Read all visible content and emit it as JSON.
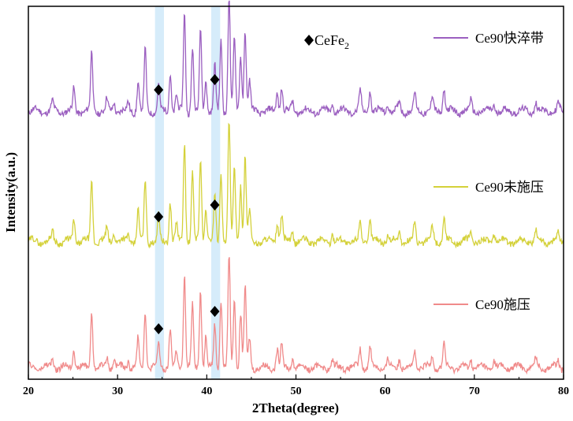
{
  "chart_data": {
    "type": "line",
    "xlabel": "2Theta(degree)",
    "ylabel": "Intensity(a.u.)",
    "xlim": [
      20,
      80
    ],
    "x_ticks": [
      20,
      30,
      40,
      50,
      60,
      70,
      80
    ],
    "y_ticks_shown": false,
    "grid": false,
    "highlight_bands": [
      {
        "from": 34.2,
        "to": 35.2,
        "color": "#d6ecfa"
      },
      {
        "from": 40.5,
        "to": 41.5,
        "color": "#d6ecfa"
      }
    ],
    "phase_marker": {
      "symbol": "◆",
      "phase": "CeFe",
      "subscript": "2",
      "positions": [
        34.6,
        40.9
      ]
    },
    "peaks": [
      {
        "x": 22.7,
        "h": 0.09
      },
      {
        "x": 25.1,
        "h": 0.22
      },
      {
        "x": 27.1,
        "h": 0.6
      },
      {
        "x": 28.8,
        "h": 0.12
      },
      {
        "x": 29.6,
        "h": 0.1
      },
      {
        "x": 31.2,
        "h": 0.08
      },
      {
        "x": 32.3,
        "h": 0.3
      },
      {
        "x": 33.1,
        "h": 0.62
      },
      {
        "x": 34.6,
        "h": 0.26
      },
      {
        "x": 35.9,
        "h": 0.4
      },
      {
        "x": 36.6,
        "h": 0.16
      },
      {
        "x": 37.5,
        "h": 1.0
      },
      {
        "x": 38.4,
        "h": 0.66
      },
      {
        "x": 39.3,
        "h": 0.83
      },
      {
        "x": 39.9,
        "h": 0.34
      },
      {
        "x": 40.9,
        "h": 0.46
      },
      {
        "x": 41.6,
        "h": 0.72
      },
      {
        "x": 42.5,
        "h": 1.18
      },
      {
        "x": 43.1,
        "h": 0.75
      },
      {
        "x": 43.8,
        "h": 0.58
      },
      {
        "x": 44.3,
        "h": 0.84
      },
      {
        "x": 44.8,
        "h": 0.3
      },
      {
        "x": 47.9,
        "h": 0.2
      },
      {
        "x": 48.4,
        "h": 0.25
      },
      {
        "x": 49.6,
        "h": 0.1
      },
      {
        "x": 54.1,
        "h": 0.08
      },
      {
        "x": 57.2,
        "h": 0.2
      },
      {
        "x": 58.3,
        "h": 0.22
      },
      {
        "x": 60.3,
        "h": 0.08
      },
      {
        "x": 61.6,
        "h": 0.1
      },
      {
        "x": 63.3,
        "h": 0.18
      },
      {
        "x": 65.3,
        "h": 0.14
      },
      {
        "x": 66.6,
        "h": 0.24
      },
      {
        "x": 69.6,
        "h": 0.1
      },
      {
        "x": 72.2,
        "h": 0.08
      },
      {
        "x": 76.9,
        "h": 0.09
      },
      {
        "x": 79.4,
        "h": 0.07
      }
    ],
    "series": [
      {
        "name": "Ce90快淬带",
        "color": "#9b5fc0",
        "seed": 11
      },
      {
        "name": "Ce90未施压",
        "color": "#d4d13a",
        "seed": 29
      },
      {
        "name": "Ce90施压",
        "color": "#f08a8a",
        "seed": 47
      }
    ]
  }
}
